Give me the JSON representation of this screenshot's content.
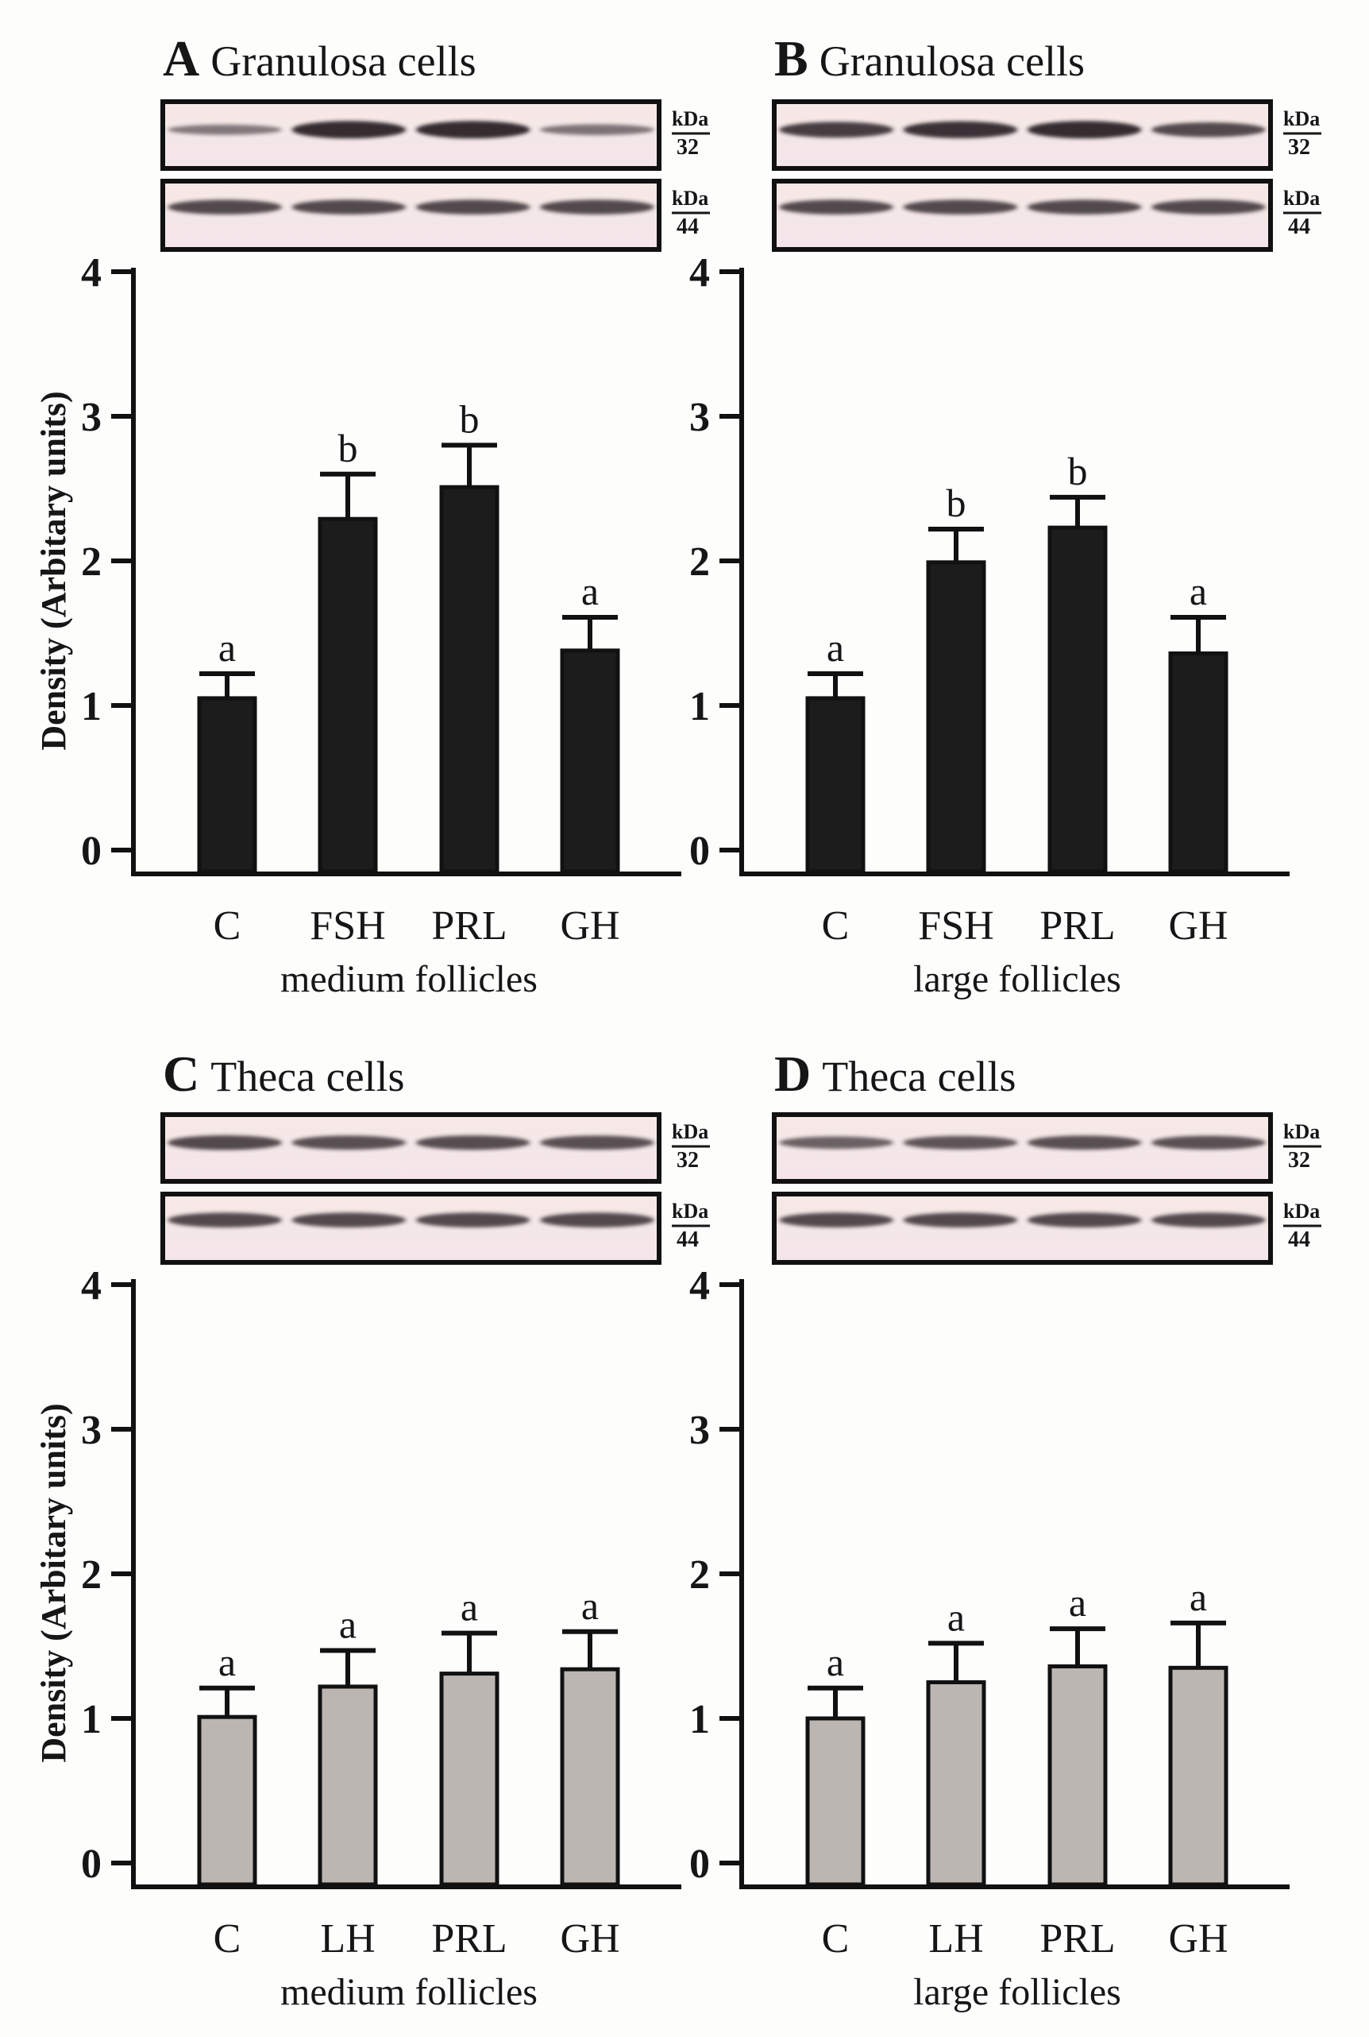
{
  "chart_data": [
    {
      "panel": "A",
      "type": "bar",
      "title": "Granulosa cells",
      "categories": [
        "C",
        "FSH",
        "PRL",
        "GH"
      ],
      "values": [
        1.05,
        2.29,
        2.51,
        1.38
      ],
      "errors": [
        0.17,
        0.31,
        0.29,
        0.23
      ],
      "letters": [
        "a",
        "b",
        "b",
        "a"
      ],
      "xlabel": "medium follicles",
      "ylabel": "Density (Arbitary units)",
      "ylim": [
        0,
        4
      ],
      "yticks": [
        "0",
        "1",
        "2",
        "3",
        "4"
      ],
      "bar_color": "#1c1c1c",
      "blot_labels": [
        [
          "kDa",
          "32"
        ],
        [
          "kDa",
          "44"
        ]
      ]
    },
    {
      "panel": "B",
      "type": "bar",
      "title": "Granulosa cells",
      "categories": [
        "C",
        "FSH",
        "PRL",
        "GH"
      ],
      "values": [
        1.05,
        1.99,
        2.23,
        1.36
      ],
      "errors": [
        0.17,
        0.23,
        0.21,
        0.25
      ],
      "letters": [
        "a",
        "b",
        "b",
        "a"
      ],
      "xlabel": "large follicles",
      "ylabel": "",
      "ylim": [
        0,
        4
      ],
      "yticks": [
        "0",
        "1",
        "2",
        "3",
        "4"
      ],
      "bar_color": "#1c1c1c",
      "blot_labels": [
        [
          "kDa",
          "32"
        ],
        [
          "kDa",
          "44"
        ]
      ]
    },
    {
      "panel": "C",
      "type": "bar",
      "title": "Theca cells",
      "categories": [
        "C",
        "LH",
        "PRL",
        "GH"
      ],
      "values": [
        1.01,
        1.22,
        1.31,
        1.34
      ],
      "errors": [
        0.2,
        0.25,
        0.28,
        0.26
      ],
      "letters": [
        "a",
        "a",
        "a",
        "a"
      ],
      "xlabel": "medium follicles",
      "ylabel": "Density (Arbitary units)",
      "ylim": [
        0,
        4
      ],
      "yticks": [
        "0",
        "1",
        "2",
        "3",
        "4"
      ],
      "bar_color": "#bcb6b3",
      "blot_labels": [
        [
          "kDa",
          "32"
        ],
        [
          "kDa",
          "44"
        ]
      ]
    },
    {
      "panel": "D",
      "type": "bar",
      "title": "Theca cells",
      "categories": [
        "C",
        "LH",
        "PRL",
        "GH"
      ],
      "values": [
        1.0,
        1.25,
        1.36,
        1.35
      ],
      "errors": [
        0.21,
        0.27,
        0.26,
        0.31
      ],
      "letters": [
        "a",
        "a",
        "a",
        "a"
      ],
      "xlabel": "large follicles",
      "ylabel": "",
      "ylim": [
        0,
        4
      ],
      "yticks": [
        "0",
        "1",
        "2",
        "3",
        "4"
      ],
      "bar_color": "#bcb6b3",
      "blot_labels": [
        [
          "kDa",
          "32"
        ],
        [
          "kDa",
          "44"
        ]
      ]
    }
  ]
}
